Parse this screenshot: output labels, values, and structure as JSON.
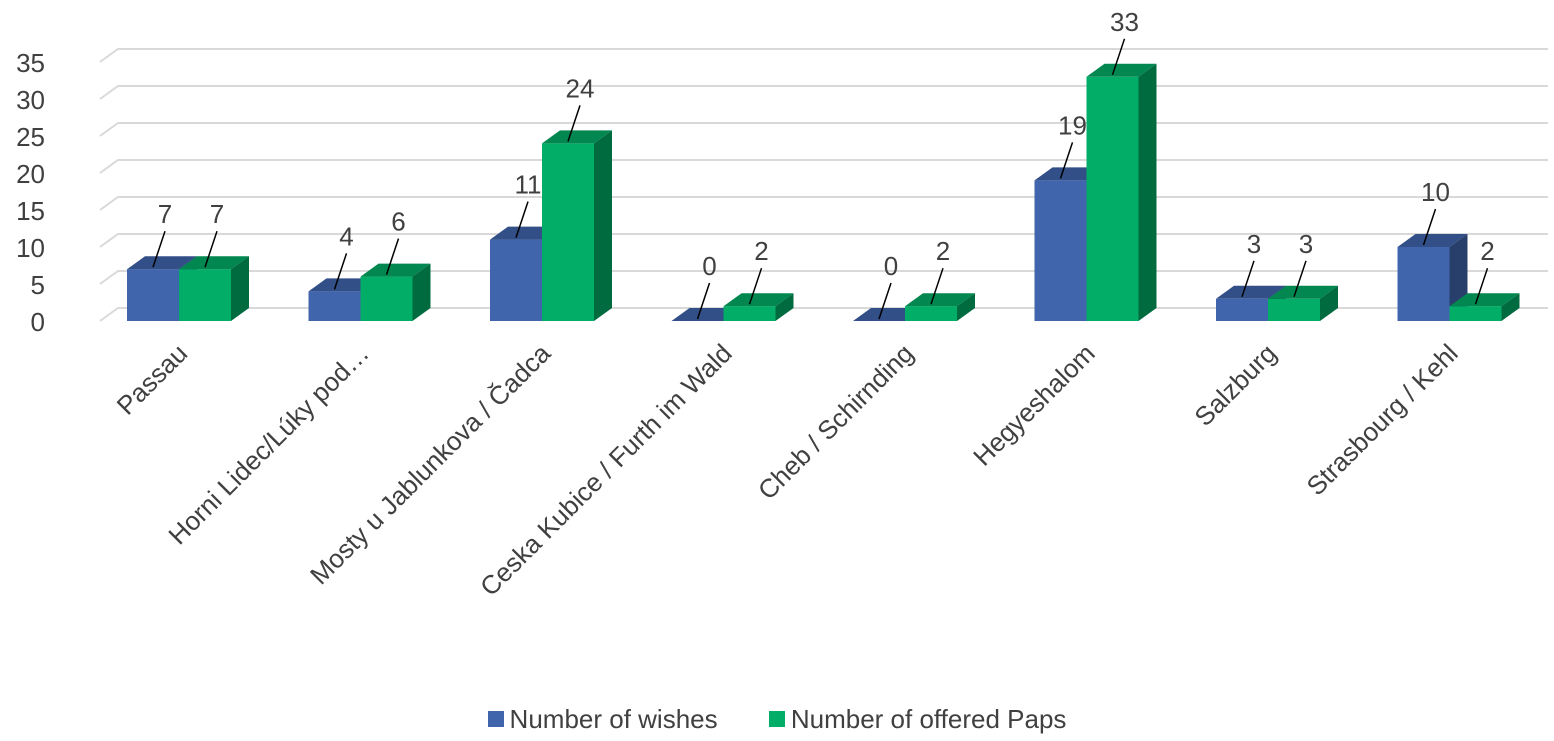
{
  "chart_data": {
    "type": "bar",
    "title": "",
    "xlabel": "",
    "ylabel": "",
    "ylim": [
      0,
      35
    ],
    "yticks": [
      0,
      5,
      10,
      15,
      20,
      25,
      30,
      35
    ],
    "grid": true,
    "legend_position": "bottom",
    "categories": [
      "Passau",
      "Horni Lidec/Lúky pod…",
      "Mosty u Jablunkova / Čadca",
      "Ceska Kubice / Furth im Wald",
      "Cheb / Schirnding",
      "Hegyeshalom",
      "Salzburg",
      "Strasbourg / Kehl"
    ],
    "series": [
      {
        "name": "Number of wishes",
        "values": [
          7,
          4,
          11,
          0,
          0,
          19,
          3,
          10
        ],
        "color": "#4065ad"
      },
      {
        "name": "Number of offered Paps",
        "values": [
          7,
          6,
          24,
          2,
          2,
          33,
          3,
          2
        ],
        "color": "#02ad67"
      }
    ]
  }
}
